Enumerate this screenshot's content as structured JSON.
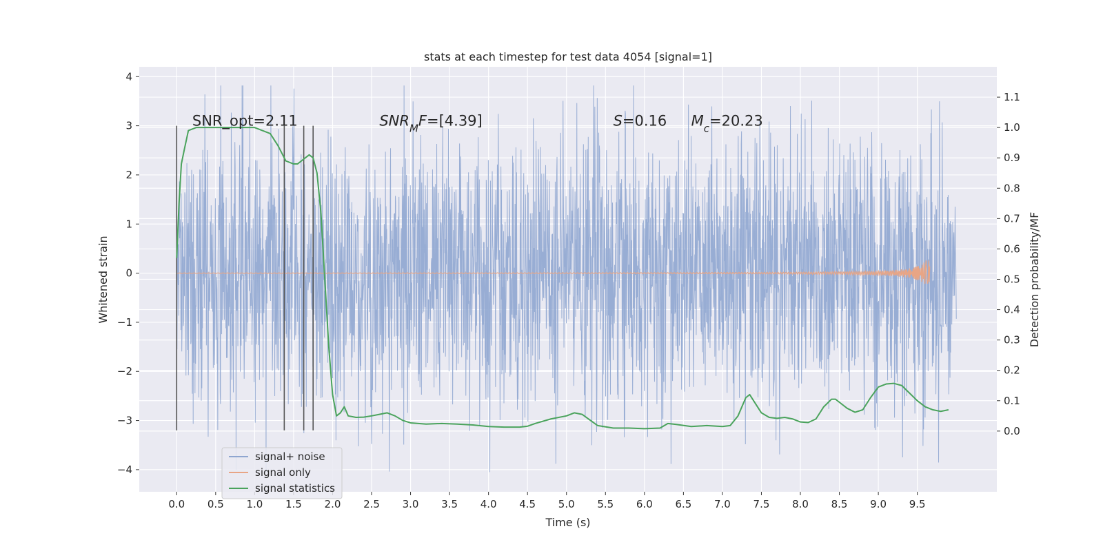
{
  "chart_data": {
    "type": "line",
    "title": "stats at each timestep for test data 4054 [signal=1]",
    "xlabel": "Time (s)",
    "ylabel": "Whitened strain",
    "ylabel_right": "Detection probability/MF",
    "xlim": [
      -0.48,
      10.52
    ],
    "ylim": [
      -4.45,
      4.2
    ],
    "ylim_right": [
      -0.2,
      1.2
    ],
    "x_ticks": [
      0.0,
      0.5,
      1.0,
      1.5,
      2.0,
      2.5,
      3.0,
      3.5,
      4.0,
      4.5,
      5.0,
      5.5,
      6.0,
      6.5,
      7.0,
      7.5,
      8.0,
      8.5,
      9.0,
      9.5
    ],
    "x_tick_labels": [
      "0.0",
      "0.5",
      "1.0",
      "1.5",
      "2.0",
      "2.5",
      "3.0",
      "3.5",
      "4.0",
      "4.5",
      "5.0",
      "5.5",
      "6.0",
      "6.5",
      "7.0",
      "7.5",
      "8.0",
      "8.5",
      "9.0",
      "9.5"
    ],
    "y_ticks": [
      -4,
      -3,
      -2,
      -1,
      0,
      1,
      2,
      3,
      4
    ],
    "y_tick_labels": [
      "−4",
      "−3",
      "−2",
      "−1",
      "0",
      "1",
      "2",
      "3",
      "4"
    ],
    "y_ticks_right": [
      0.0,
      0.1,
      0.2,
      0.3,
      0.4,
      0.5,
      0.6,
      0.7,
      0.8,
      0.9,
      1.0,
      1.1
    ],
    "y_tick_labels_right": [
      "0.0",
      "0.1",
      "0.2",
      "0.3",
      "0.4",
      "0.5",
      "0.6",
      "0.7",
      "0.8",
      "0.9",
      "1.0",
      "1.1"
    ],
    "grid": true,
    "legend_position": "lower-left",
    "annotations": [
      {
        "id": "snr-opt",
        "x": 0.2,
        "y": 3.0,
        "parts": [
          {
            "t": "SNR_opt=2.11"
          }
        ]
      },
      {
        "id": "snr-mf",
        "x": 2.6,
        "y": 3.0,
        "parts": [
          {
            "t": "SNR",
            "i": true
          },
          {
            "t": "M",
            "i": true,
            "sub": true
          },
          {
            "t": "F",
            "i": true
          },
          {
            "t": "=[4.39]"
          }
        ]
      },
      {
        "id": "s",
        "x": 5.6,
        "y": 3.0,
        "parts": [
          {
            "t": "S",
            "i": true
          },
          {
            "t": "=0.16"
          }
        ]
      },
      {
        "id": "mc",
        "x": 6.6,
        "y": 3.0,
        "parts": [
          {
            "t": "M",
            "i": true
          },
          {
            "t": "c",
            "i": true,
            "sub": true
          },
          {
            "t": "=20.23"
          }
        ]
      }
    ],
    "vlines": {
      "x": [
        0.0,
        1.38,
        1.63,
        1.75
      ],
      "y_range": [
        -3.2,
        3.0
      ],
      "color": "#555555"
    },
    "series": [
      {
        "name": "signal+ noise",
        "axis": "left",
        "color": "#8fa6d0",
        "kind": "noise",
        "x_range": [
          0.0,
          10.0
        ],
        "typical_abs": 1.4,
        "extreme_min": -4.05,
        "extreme_max": 3.82
      },
      {
        "name": "signal only",
        "axis": "left",
        "color": "#e8a585",
        "kind": "chirp",
        "x_range": [
          0.0,
          9.66
        ],
        "peak_time": 9.66,
        "peak_amplitude": 0.45
      },
      {
        "name": "signal statistics",
        "axis": "right",
        "color": "#4aa35c",
        "kind": "curve",
        "x": [
          0.0,
          0.03,
          0.06,
          0.1,
          0.15,
          0.25,
          0.4,
          0.6,
          0.8,
          1.0,
          1.1,
          1.2,
          1.3,
          1.4,
          1.5,
          1.55,
          1.6,
          1.65,
          1.7,
          1.75,
          1.8,
          1.85,
          1.9,
          1.95,
          2.0,
          2.05,
          2.1,
          2.15,
          2.2,
          2.3,
          2.4,
          2.5,
          2.6,
          2.7,
          2.8,
          2.9,
          3.0,
          3.2,
          3.4,
          3.6,
          3.8,
          4.0,
          4.2,
          4.4,
          4.5,
          4.6,
          4.8,
          5.0,
          5.1,
          5.2,
          5.4,
          5.6,
          5.8,
          6.0,
          6.2,
          6.3,
          6.4,
          6.6,
          6.8,
          7.0,
          7.1,
          7.2,
          7.3,
          7.35,
          7.4,
          7.5,
          7.6,
          7.7,
          7.8,
          7.9,
          8.0,
          8.1,
          8.2,
          8.3,
          8.4,
          8.45,
          8.5,
          8.6,
          8.7,
          8.8,
          8.9,
          9.0,
          9.1,
          9.2,
          9.3,
          9.4,
          9.5,
          9.6,
          9.7,
          9.8,
          9.9
        ],
        "y": [
          0.57,
          0.75,
          0.88,
          0.93,
          0.99,
          1.0,
          1.0,
          1.0,
          1.0,
          1.0,
          0.99,
          0.98,
          0.94,
          0.89,
          0.88,
          0.88,
          0.89,
          0.9,
          0.91,
          0.9,
          0.85,
          0.72,
          0.5,
          0.28,
          0.12,
          0.05,
          0.06,
          0.08,
          0.05,
          0.045,
          0.046,
          0.05,
          0.055,
          0.06,
          0.05,
          0.035,
          0.027,
          0.023,
          0.025,
          0.023,
          0.02,
          0.015,
          0.013,
          0.013,
          0.016,
          0.025,
          0.04,
          0.05,
          0.06,
          0.055,
          0.018,
          0.01,
          0.01,
          0.008,
          0.01,
          0.025,
          0.022,
          0.015,
          0.018,
          0.015,
          0.018,
          0.05,
          0.11,
          0.12,
          0.1,
          0.06,
          0.045,
          0.042,
          0.045,
          0.04,
          0.03,
          0.028,
          0.04,
          0.08,
          0.105,
          0.105,
          0.095,
          0.075,
          0.062,
          0.07,
          0.11,
          0.145,
          0.155,
          0.157,
          0.15,
          0.125,
          0.1,
          0.08,
          0.07,
          0.065,
          0.07
        ]
      }
    ]
  }
}
